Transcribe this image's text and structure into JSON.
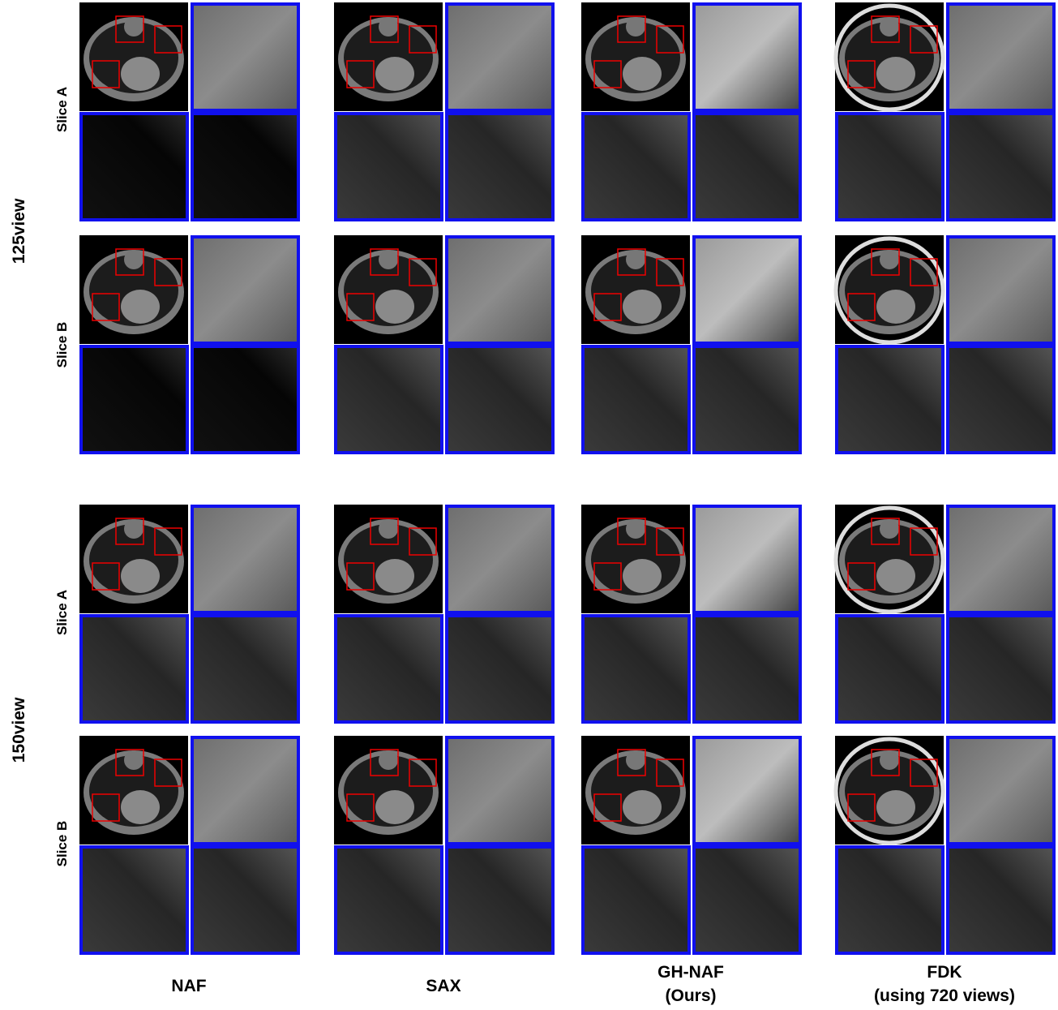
{
  "groups": [
    {
      "label": "125view",
      "slices": [
        "Slice A",
        "Slice B"
      ]
    },
    {
      "label": "150view",
      "slices": [
        "Slice A",
        "Slice B"
      ]
    }
  ],
  "columns": [
    {
      "lines": [
        "NAF"
      ]
    },
    {
      "lines": [
        "SAX"
      ]
    },
    {
      "lines": [
        "GH-NAF",
        "(Ours)"
      ]
    },
    {
      "lines": [
        "FDK",
        "(using 720 views)"
      ]
    }
  ]
}
